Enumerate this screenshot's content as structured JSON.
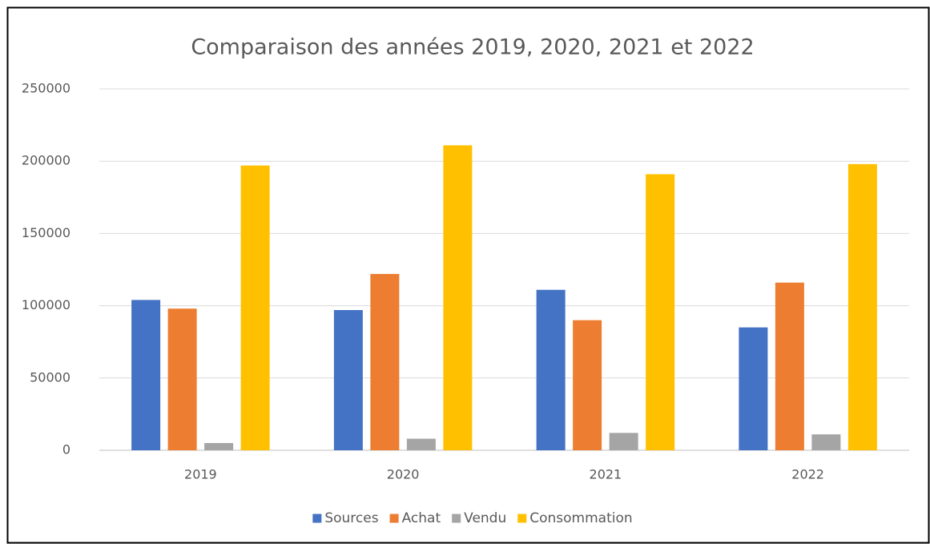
{
  "chart_data": {
    "type": "bar",
    "title": "Comparaison des années 2019, 2020, 2021 et 2022",
    "categories": [
      "2019",
      "2020",
      "2021",
      "2022"
    ],
    "series": [
      {
        "name": "Sources",
        "color": "#4472c4",
        "values": [
          104000,
          97000,
          111000,
          85000
        ]
      },
      {
        "name": "Achat",
        "color": "#ed7d31",
        "values": [
          98000,
          122000,
          90000,
          116000
        ]
      },
      {
        "name": "Vendu",
        "color": "#a5a5a5",
        "values": [
          5000,
          8000,
          12000,
          11000
        ]
      },
      {
        "name": "Consommation",
        "color": "#ffc000",
        "values": [
          197000,
          211000,
          191000,
          198000
        ]
      }
    ],
    "ylim": [
      0,
      250000
    ],
    "yticks": [
      0,
      50000,
      100000,
      150000,
      200000,
      250000
    ],
    "grid": true,
    "legend": "bottom"
  }
}
